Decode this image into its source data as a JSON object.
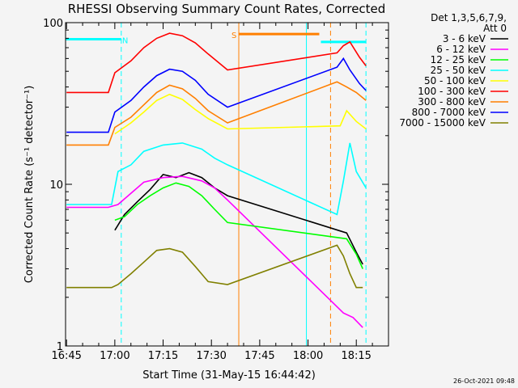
{
  "chart_data": {
    "type": "line",
    "title": "RHESSI Observing Summary Count Rates, Corrected",
    "xlabel": "Start Time (31-May-15 16:44:42)",
    "ylabel": "Corrected Count Rate (s⁻¹ detector⁻¹)",
    "yscale": "log",
    "ylim": [
      1,
      100
    ],
    "y_ticks": [
      "1",
      "10",
      "100"
    ],
    "xlim_minutes_since_1645": [
      -0.3,
      100
    ],
    "x_tick_labels": [
      "16:45",
      "17:00",
      "17:15",
      "17:30",
      "17:45",
      "18:00",
      "18:15"
    ],
    "x_tick_minutes": [
      0,
      15,
      30,
      45,
      60,
      75,
      90
    ],
    "legend_header": [
      "Det 1,3,5,6,7,9,",
      "Att 0"
    ],
    "legend_position": "right-outside",
    "timestamp": "26-Oct-2021 09:48",
    "flags": [
      {
        "label": "N",
        "color": "#00ffff",
        "start": -0.3,
        "end": 17,
        "y": 79
      },
      {
        "label": "S",
        "color": "#ff7f00",
        "start": 53.5,
        "end": 78.5,
        "y": 85
      },
      {
        "label": "",
        "color": "#00ffff",
        "start": 79,
        "end": 93,
        "y": 76
      }
    ],
    "vertical_markers": [
      {
        "x": 17,
        "color": "#00ffff",
        "style": "dashed"
      },
      {
        "x": 53.5,
        "color": "#ff7f00",
        "style": "solid"
      },
      {
        "x": 74.5,
        "color": "#00ffff",
        "style": "solid"
      },
      {
        "x": 82,
        "color": "#ff7f00",
        "style": "dashed"
      },
      {
        "x": 93,
        "color": "#00ffff",
        "style": "dashed"
      }
    ],
    "series": [
      {
        "name": "3 - 6 keV",
        "color": "#000000",
        "points": [
          [
            15,
            5.2
          ],
          [
            18,
            6.5
          ],
          [
            22,
            7.8
          ],
          [
            26,
            9.3
          ],
          [
            30,
            11.5
          ],
          [
            34,
            11.0
          ],
          [
            38,
            11.8
          ],
          [
            42,
            11.0
          ],
          [
            46,
            9.5
          ],
          [
            50,
            8.5
          ],
          [
            87,
            5.0
          ],
          [
            90,
            3.8
          ],
          [
            92,
            3.2
          ]
        ]
      },
      {
        "name": "6 - 12 keV",
        "color": "#ff00ff",
        "points": [
          [
            0,
            7.2
          ],
          [
            13,
            7.2
          ],
          [
            16,
            7.5
          ],
          [
            20,
            8.8
          ],
          [
            24,
            10.3
          ],
          [
            30,
            11.0
          ],
          [
            36,
            11.2
          ],
          [
            42,
            10.5
          ],
          [
            46,
            9.5
          ],
          [
            50,
            8.0
          ],
          [
            86,
            1.6
          ],
          [
            89,
            1.5
          ],
          [
            92,
            1.3
          ]
        ]
      },
      {
        "name": "12 - 25 keV",
        "color": "#00ff00",
        "points": [
          [
            15,
            6.0
          ],
          [
            18,
            6.3
          ],
          [
            22,
            7.5
          ],
          [
            26,
            8.5
          ],
          [
            30,
            9.5
          ],
          [
            34,
            10.2
          ],
          [
            38,
            9.7
          ],
          [
            42,
            8.5
          ],
          [
            46,
            7.0
          ],
          [
            50,
            5.8
          ],
          [
            87,
            4.6
          ],
          [
            90,
            3.7
          ],
          [
            92,
            3.0
          ]
        ]
      },
      {
        "name": "25 - 50 keV",
        "color": "#00ffff",
        "points": [
          [
            0,
            7.5
          ],
          [
            14,
            7.5
          ],
          [
            16,
            12.0
          ],
          [
            20,
            13.2
          ],
          [
            24,
            16.0
          ],
          [
            30,
            17.5
          ],
          [
            36,
            18.0
          ],
          [
            42,
            16.5
          ],
          [
            46,
            14.5
          ],
          [
            50,
            13.2
          ],
          [
            84,
            6.5
          ],
          [
            86,
            10.5
          ],
          [
            88,
            18.0
          ],
          [
            90,
            12.0
          ],
          [
            93,
            9.5
          ]
        ]
      },
      {
        "name": "50 - 100 keV",
        "color": "#ffff00",
        "points": [
          [
            15,
            20.5
          ],
          [
            20,
            24.0
          ],
          [
            24,
            28.0
          ],
          [
            28,
            33.0
          ],
          [
            32,
            36.0
          ],
          [
            36,
            33.5
          ],
          [
            40,
            29.0
          ],
          [
            44,
            25.5
          ],
          [
            50,
            22.0
          ],
          [
            85,
            23.0
          ],
          [
            87,
            28.5
          ],
          [
            90,
            24.5
          ],
          [
            93,
            22.0
          ]
        ]
      },
      {
        "name": "100 - 300 keV",
        "color": "#ff0000",
        "points": [
          [
            0,
            37.0
          ],
          [
            13,
            37.0
          ],
          [
            15,
            49.0
          ],
          [
            20,
            58.0
          ],
          [
            24,
            70.0
          ],
          [
            28,
            80.0
          ],
          [
            32,
            86.0
          ],
          [
            36,
            83.0
          ],
          [
            40,
            75.0
          ],
          [
            44,
            64.0
          ],
          [
            50,
            51.0
          ],
          [
            84,
            65.0
          ],
          [
            86,
            72.0
          ],
          [
            88,
            76.0
          ],
          [
            91,
            61.0
          ],
          [
            93,
            54.0
          ]
        ]
      },
      {
        "name": "300 - 800 keV",
        "color": "#ff7f00",
        "points": [
          [
            0,
            17.5
          ],
          [
            13,
            17.5
          ],
          [
            15,
            22.5
          ],
          [
            20,
            26.0
          ],
          [
            24,
            31.0
          ],
          [
            28,
            37.0
          ],
          [
            32,
            41.0
          ],
          [
            36,
            39.0
          ],
          [
            40,
            34.0
          ],
          [
            44,
            28.5
          ],
          [
            50,
            24.0
          ],
          [
            84,
            43.0
          ],
          [
            87,
            40.0
          ],
          [
            90,
            37.0
          ],
          [
            93,
            33.0
          ]
        ]
      },
      {
        "name": "800 - 7000 keV",
        "color": "#0000ff",
        "points": [
          [
            0,
            21.0
          ],
          [
            13,
            21.0
          ],
          [
            15,
            28.0
          ],
          [
            20,
            33.0
          ],
          [
            24,
            40.0
          ],
          [
            28,
            47.0
          ],
          [
            32,
            51.5
          ],
          [
            36,
            50.0
          ],
          [
            40,
            44.0
          ],
          [
            44,
            36.0
          ],
          [
            50,
            30.0
          ],
          [
            84,
            53.0
          ],
          [
            86,
            60.0
          ],
          [
            88,
            51.0
          ],
          [
            91,
            42.0
          ],
          [
            93,
            38.0
          ]
        ]
      },
      {
        "name": "7000 - 15000 keV",
        "color": "#808000",
        "points": [
          [
            0,
            2.3
          ],
          [
            8,
            2.3
          ],
          [
            14,
            2.3
          ],
          [
            16,
            2.4
          ],
          [
            20,
            2.8
          ],
          [
            24,
            3.3
          ],
          [
            28,
            3.9
          ],
          [
            32,
            4.0
          ],
          [
            36,
            3.8
          ],
          [
            40,
            3.1
          ],
          [
            44,
            2.5
          ],
          [
            50,
            2.4
          ],
          [
            84,
            4.2
          ],
          [
            86,
            3.6
          ],
          [
            88,
            2.8
          ],
          [
            90,
            2.3
          ],
          [
            92,
            2.3
          ]
        ]
      }
    ]
  }
}
